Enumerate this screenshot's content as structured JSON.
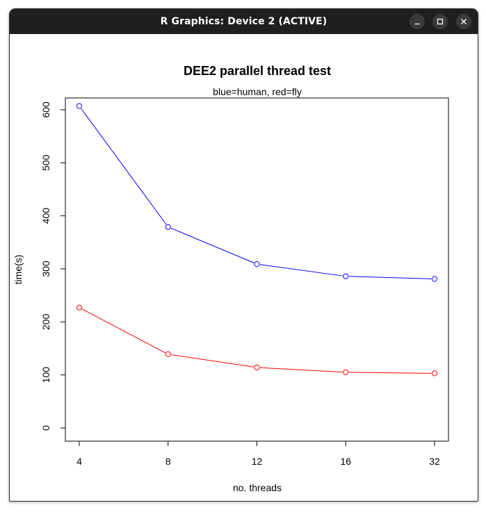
{
  "window": {
    "title": "R Graphics: Device 2 (ACTIVE)",
    "controls": {
      "minimize_icon": "minimize-icon",
      "maximize_icon": "maximize-icon",
      "close_icon": "close-icon"
    }
  },
  "chart_data": {
    "type": "line",
    "title": "DEE2 parallel thread test",
    "subtitle": "blue=human, red=fly",
    "xlabel": "no. threads",
    "ylabel": "time(s)",
    "categories": [
      "4",
      "8",
      "12",
      "16",
      "32"
    ],
    "yticks": [
      0,
      100,
      200,
      300,
      400,
      500,
      600
    ],
    "ylim": [
      0,
      600
    ],
    "grid": false,
    "series": [
      {
        "color": "#0000ff",
        "values": [
          607,
          379,
          309,
          286,
          281
        ]
      },
      {
        "color": "#ff0000",
        "values": [
          227,
          139,
          114,
          105,
          103
        ]
      }
    ]
  }
}
